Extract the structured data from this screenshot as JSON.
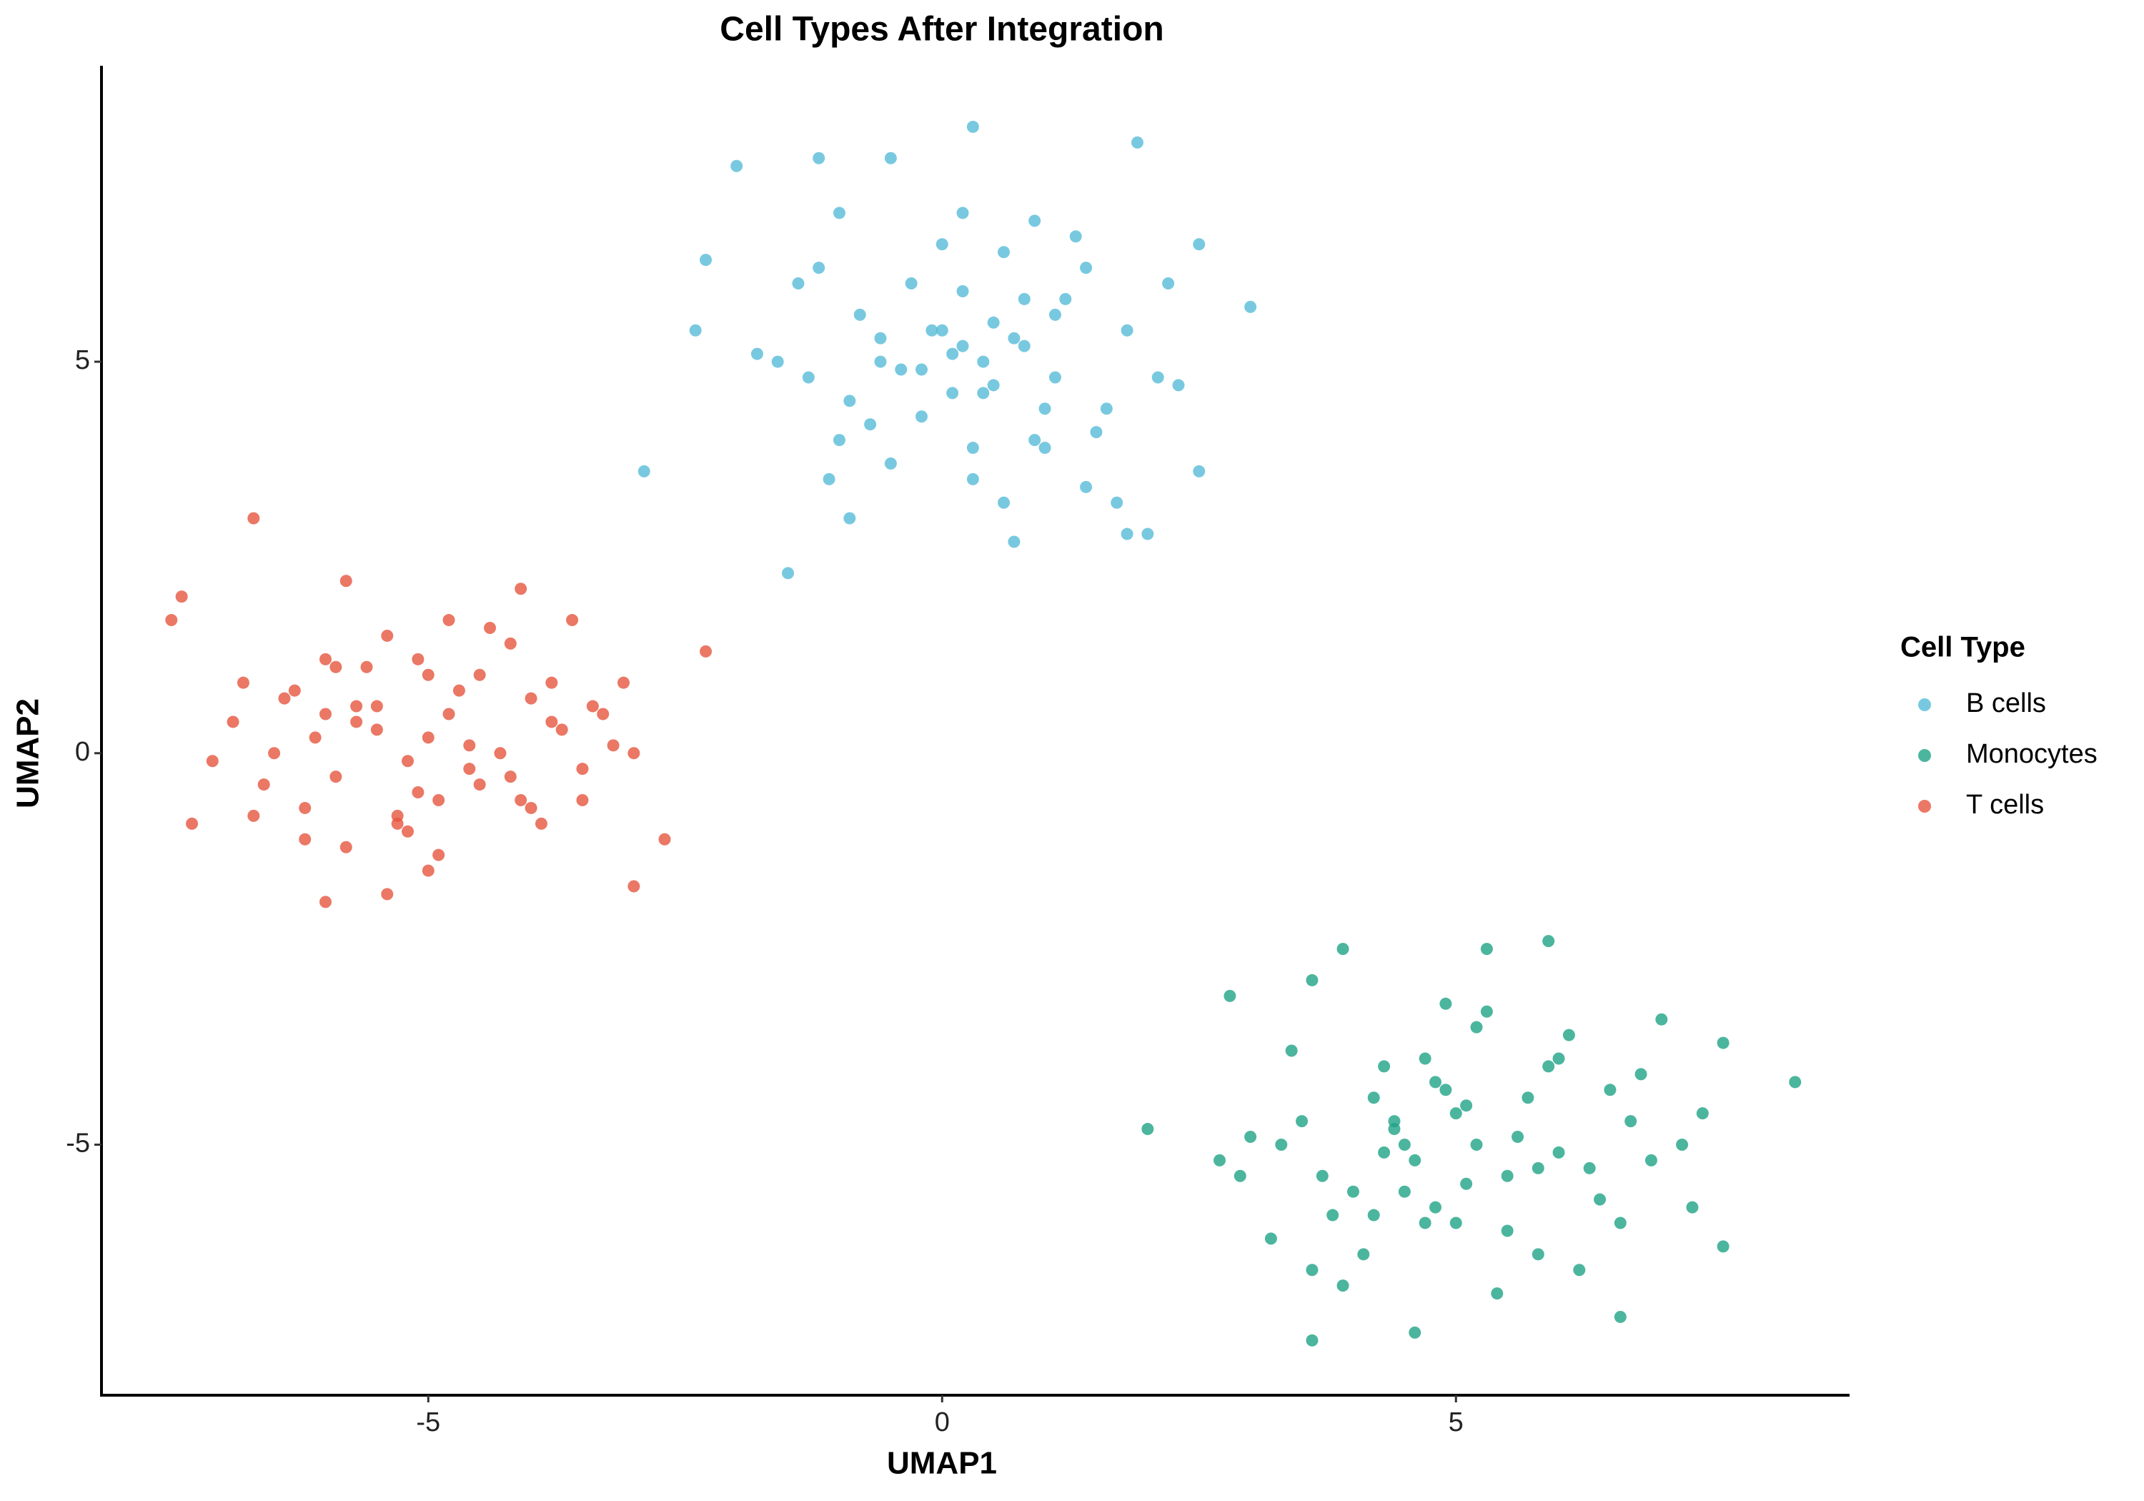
{
  "chart_data": {
    "type": "scatter",
    "title": "Cell Types After Integration",
    "x_label": "UMAP1",
    "y_label": "UMAP2",
    "legend_title": "Cell Type",
    "legend_position": "right",
    "grid": false,
    "xlim": [
      -8.18,
      8.83
    ],
    "ylim": [
      -8.2,
      8.78
    ],
    "xticks": [
      -5,
      0,
      5
    ],
    "yticks": [
      -5,
      0,
      5
    ],
    "series": [
      {
        "name": "B cells",
        "color": "#56bcd8",
        "x": [
          -2.9,
          -1.5,
          -2.3,
          -2.4,
          -2.0,
          0.3,
          1.9,
          3.0,
          2.5,
          2.5,
          1.8,
          2.0,
          0.7,
          -0.9,
          -1.2,
          -0.5,
          0.2,
          -1.0,
          -0.3,
          0.5,
          0.8,
          1.1,
          1.4,
          -0.6,
          0.0,
          0.4,
          0.9,
          -0.2,
          1.2,
          1.6,
          -1.3,
          -0.8,
          0.1,
          0.6,
          1.0,
          -0.4,
          0.3,
          1.3,
          2.1,
          -1.1,
          -0.7,
          0.2,
          0.7,
          1.5,
          -1.6,
          -0.1,
          0.5,
          1.8,
          2.3,
          -1.8,
          0.0,
          0.9,
          -0.5,
          1.1,
          0.4,
          -0.9,
          1.7,
          -1.4,
          0.6,
          0.2,
          -0.2,
          1.0,
          2.2,
          -1.0,
          0.8,
          0.3,
          -0.6,
          1.4,
          0.1,
          -1.2
        ],
        "values": [
          3.6,
          2.3,
          6.3,
          5.4,
          7.5,
          8.0,
          7.8,
          5.7,
          6.5,
          3.6,
          2.8,
          2.8,
          2.7,
          3.0,
          7.6,
          7.6,
          6.9,
          6.9,
          6.0,
          5.5,
          5.2,
          4.8,
          6.2,
          5.0,
          5.4,
          4.6,
          4.0,
          4.3,
          5.8,
          4.4,
          4.8,
          5.6,
          5.1,
          6.4,
          3.9,
          4.9,
          3.5,
          6.6,
          4.8,
          3.5,
          4.2,
          5.9,
          5.3,
          4.1,
          5.0,
          5.4,
          4.7,
          5.4,
          4.7,
          5.1,
          6.5,
          6.8,
          3.7,
          5.6,
          5.0,
          4.5,
          3.2,
          6.0,
          3.2,
          5.2,
          4.9,
          4.4,
          6.0,
          4.0,
          5.8,
          3.9,
          5.3,
          3.4,
          4.6,
          6.2
        ]
      },
      {
        "name": "Monocytes",
        "color": "#1fa386",
        "x": [
          2.0,
          2.7,
          2.8,
          8.3,
          7.6,
          7.6,
          3.6,
          4.6,
          6.6,
          3.9,
          5.3,
          5.9,
          3.6,
          7.0,
          4.5,
          5.0,
          5.5,
          4.2,
          4.8,
          6.0,
          5.2,
          4.0,
          6.5,
          3.5,
          4.7,
          5.8,
          4.3,
          6.2,
          5.6,
          3.8,
          4.9,
          7.2,
          3.2,
          5.1,
          6.8,
          4.4,
          5.4,
          3.0,
          6.1,
          4.6,
          5.7,
          4.1,
          6.9,
          3.4,
          5.0,
          4.8,
          6.4,
          3.7,
          5.3,
          7.4,
          4.5,
          2.9,
          5.9,
          4.2,
          6.7,
          3.9,
          5.5,
          4.7,
          6.3,
          5.1,
          4.3,
          7.3,
          3.3,
          5.8,
          4.9,
          6.0,
          3.6,
          5.2,
          4.4,
          6.6
        ],
        "values": [
          -4.8,
          -5.2,
          -3.1,
          -4.2,
          -6.3,
          -3.7,
          -7.5,
          -7.4,
          -7.2,
          -2.5,
          -2.5,
          -2.4,
          -2.9,
          -3.4,
          -5.0,
          -4.6,
          -5.4,
          -4.4,
          -5.8,
          -5.1,
          -3.5,
          -5.6,
          -4.3,
          -4.7,
          -6.0,
          -5.3,
          -4.0,
          -6.6,
          -4.9,
          -5.9,
          -3.2,
          -5.0,
          -6.2,
          -5.5,
          -4.1,
          -4.8,
          -6.9,
          -4.9,
          -3.6,
          -5.2,
          -4.4,
          -6.4,
          -5.2,
          -3.8,
          -6.0,
          -4.2,
          -5.7,
          -5.4,
          -3.3,
          -4.6,
          -5.6,
          -5.4,
          -4.0,
          -5.9,
          -4.7,
          -6.8,
          -6.1,
          -3.9,
          -5.3,
          -4.5,
          -5.1,
          -5.8,
          -5.0,
          -6.4,
          -4.3,
          -3.9,
          -6.6,
          -5.0,
          -4.7,
          -6.0
        ]
      },
      {
        "name": "T cells",
        "color": "#e6553f",
        "x": [
          -7.4,
          -7.5,
          -6.7,
          -2.3,
          -2.7,
          -7.3,
          -6.0,
          -5.4,
          -3.0,
          -5.8,
          -4.1,
          -7.1,
          -5.0,
          -4.5,
          -5.5,
          -6.2,
          -3.8,
          -4.8,
          -5.2,
          -6.5,
          -4.2,
          -3.5,
          -5.7,
          -6.0,
          -4.6,
          -3.2,
          -5.3,
          -6.8,
          -4.0,
          -5.0,
          -3.7,
          -5.9,
          -4.4,
          -6.3,
          -5.1,
          -3.4,
          -4.9,
          -6.6,
          -4.3,
          -5.6,
          -3.9,
          -6.1,
          -4.7,
          -5.2,
          -3.3,
          -6.9,
          -4.1,
          -5.4,
          -3.6,
          -5.8,
          -4.6,
          -6.4,
          -5.0,
          -3.1,
          -4.8,
          -5.5,
          -6.7,
          -4.2,
          -3.8,
          -5.3,
          -4.5,
          -6.0,
          -3.5,
          -5.1,
          -4.0,
          -6.2,
          -5.7,
          -4.9,
          -3.0,
          -5.9
        ],
        "values": [
          2.0,
          1.7,
          3.0,
          1.3,
          -1.1,
          -0.9,
          -1.9,
          -1.8,
          -1.7,
          2.2,
          2.1,
          -0.1,
          0.2,
          -0.4,
          0.6,
          -0.7,
          0.9,
          0.5,
          -1.0,
          0.0,
          1.4,
          -0.6,
          0.4,
          1.2,
          -0.2,
          0.1,
          -0.8,
          0.9,
          0.7,
          1.0,
          0.3,
          -0.3,
          1.6,
          0.8,
          -0.5,
          0.6,
          -1.3,
          -0.4,
          0.0,
          1.1,
          -0.9,
          0.2,
          0.8,
          -0.1,
          0.5,
          0.4,
          -0.6,
          1.5,
          1.7,
          -1.2,
          0.1,
          0.7,
          -1.5,
          0.9,
          1.7,
          0.3,
          -0.8,
          -0.3,
          0.4,
          -0.9,
          1.0,
          0.5,
          -0.2,
          1.2,
          -0.7,
          -1.1,
          0.6,
          -0.6,
          0.0,
          1.1
        ]
      }
    ]
  }
}
